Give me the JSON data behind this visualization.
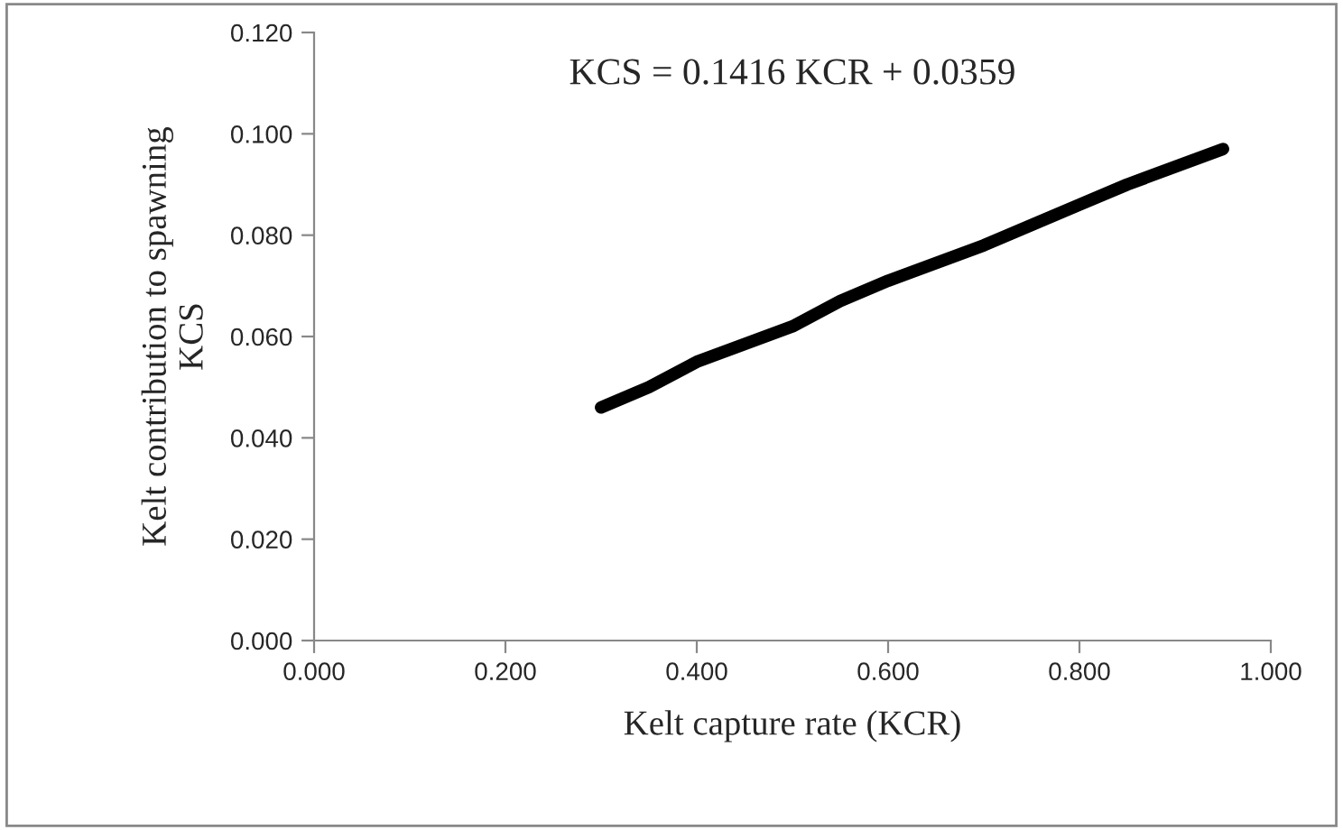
{
  "chart_data": {
    "type": "line",
    "xlabel": "Kelt capture rate (KCR)",
    "ylabel": "Kelt contribution to spawning\nKCS",
    "annotations": [
      "KCS = 0.1416 KCR + 0.0359"
    ],
    "series": [
      {
        "color": "#000000",
        "x": [
          0.3,
          0.35,
          0.4,
          0.5,
          0.55,
          0.6,
          0.7,
          0.75,
          0.8,
          0.85,
          0.95
        ],
        "values": [
          0.046,
          0.05,
          0.055,
          0.062,
          0.067,
          0.071,
          0.078,
          0.082,
          0.086,
          0.09,
          0.097
        ]
      }
    ],
    "xlim": [
      0,
      1
    ],
    "xticks": [
      {
        "value": 0,
        "label": "0.000"
      },
      {
        "value": 0.2,
        "label": "0.200"
      },
      {
        "value": 0.4,
        "label": "0.400"
      },
      {
        "value": 0.6,
        "label": "0.600"
      },
      {
        "value": 0.8,
        "label": "0.800"
      },
      {
        "value": 1,
        "label": "1.000"
      }
    ],
    "ylim": [
      0,
      0.12
    ],
    "yticks": [
      {
        "value": 0,
        "label": "0.000"
      },
      {
        "value": 0.02,
        "label": "0.020"
      },
      {
        "value": 0.04,
        "label": "0.040"
      },
      {
        "value": 0.06,
        "label": "0.060"
      },
      {
        "value": 0.08,
        "label": "0.080"
      },
      {
        "value": 0.1,
        "label": "0.100"
      },
      {
        "value": 0.12,
        "label": "0.120"
      }
    ],
    "grid": false,
    "legend": false,
    "marker": "none",
    "line_style": "solid"
  }
}
